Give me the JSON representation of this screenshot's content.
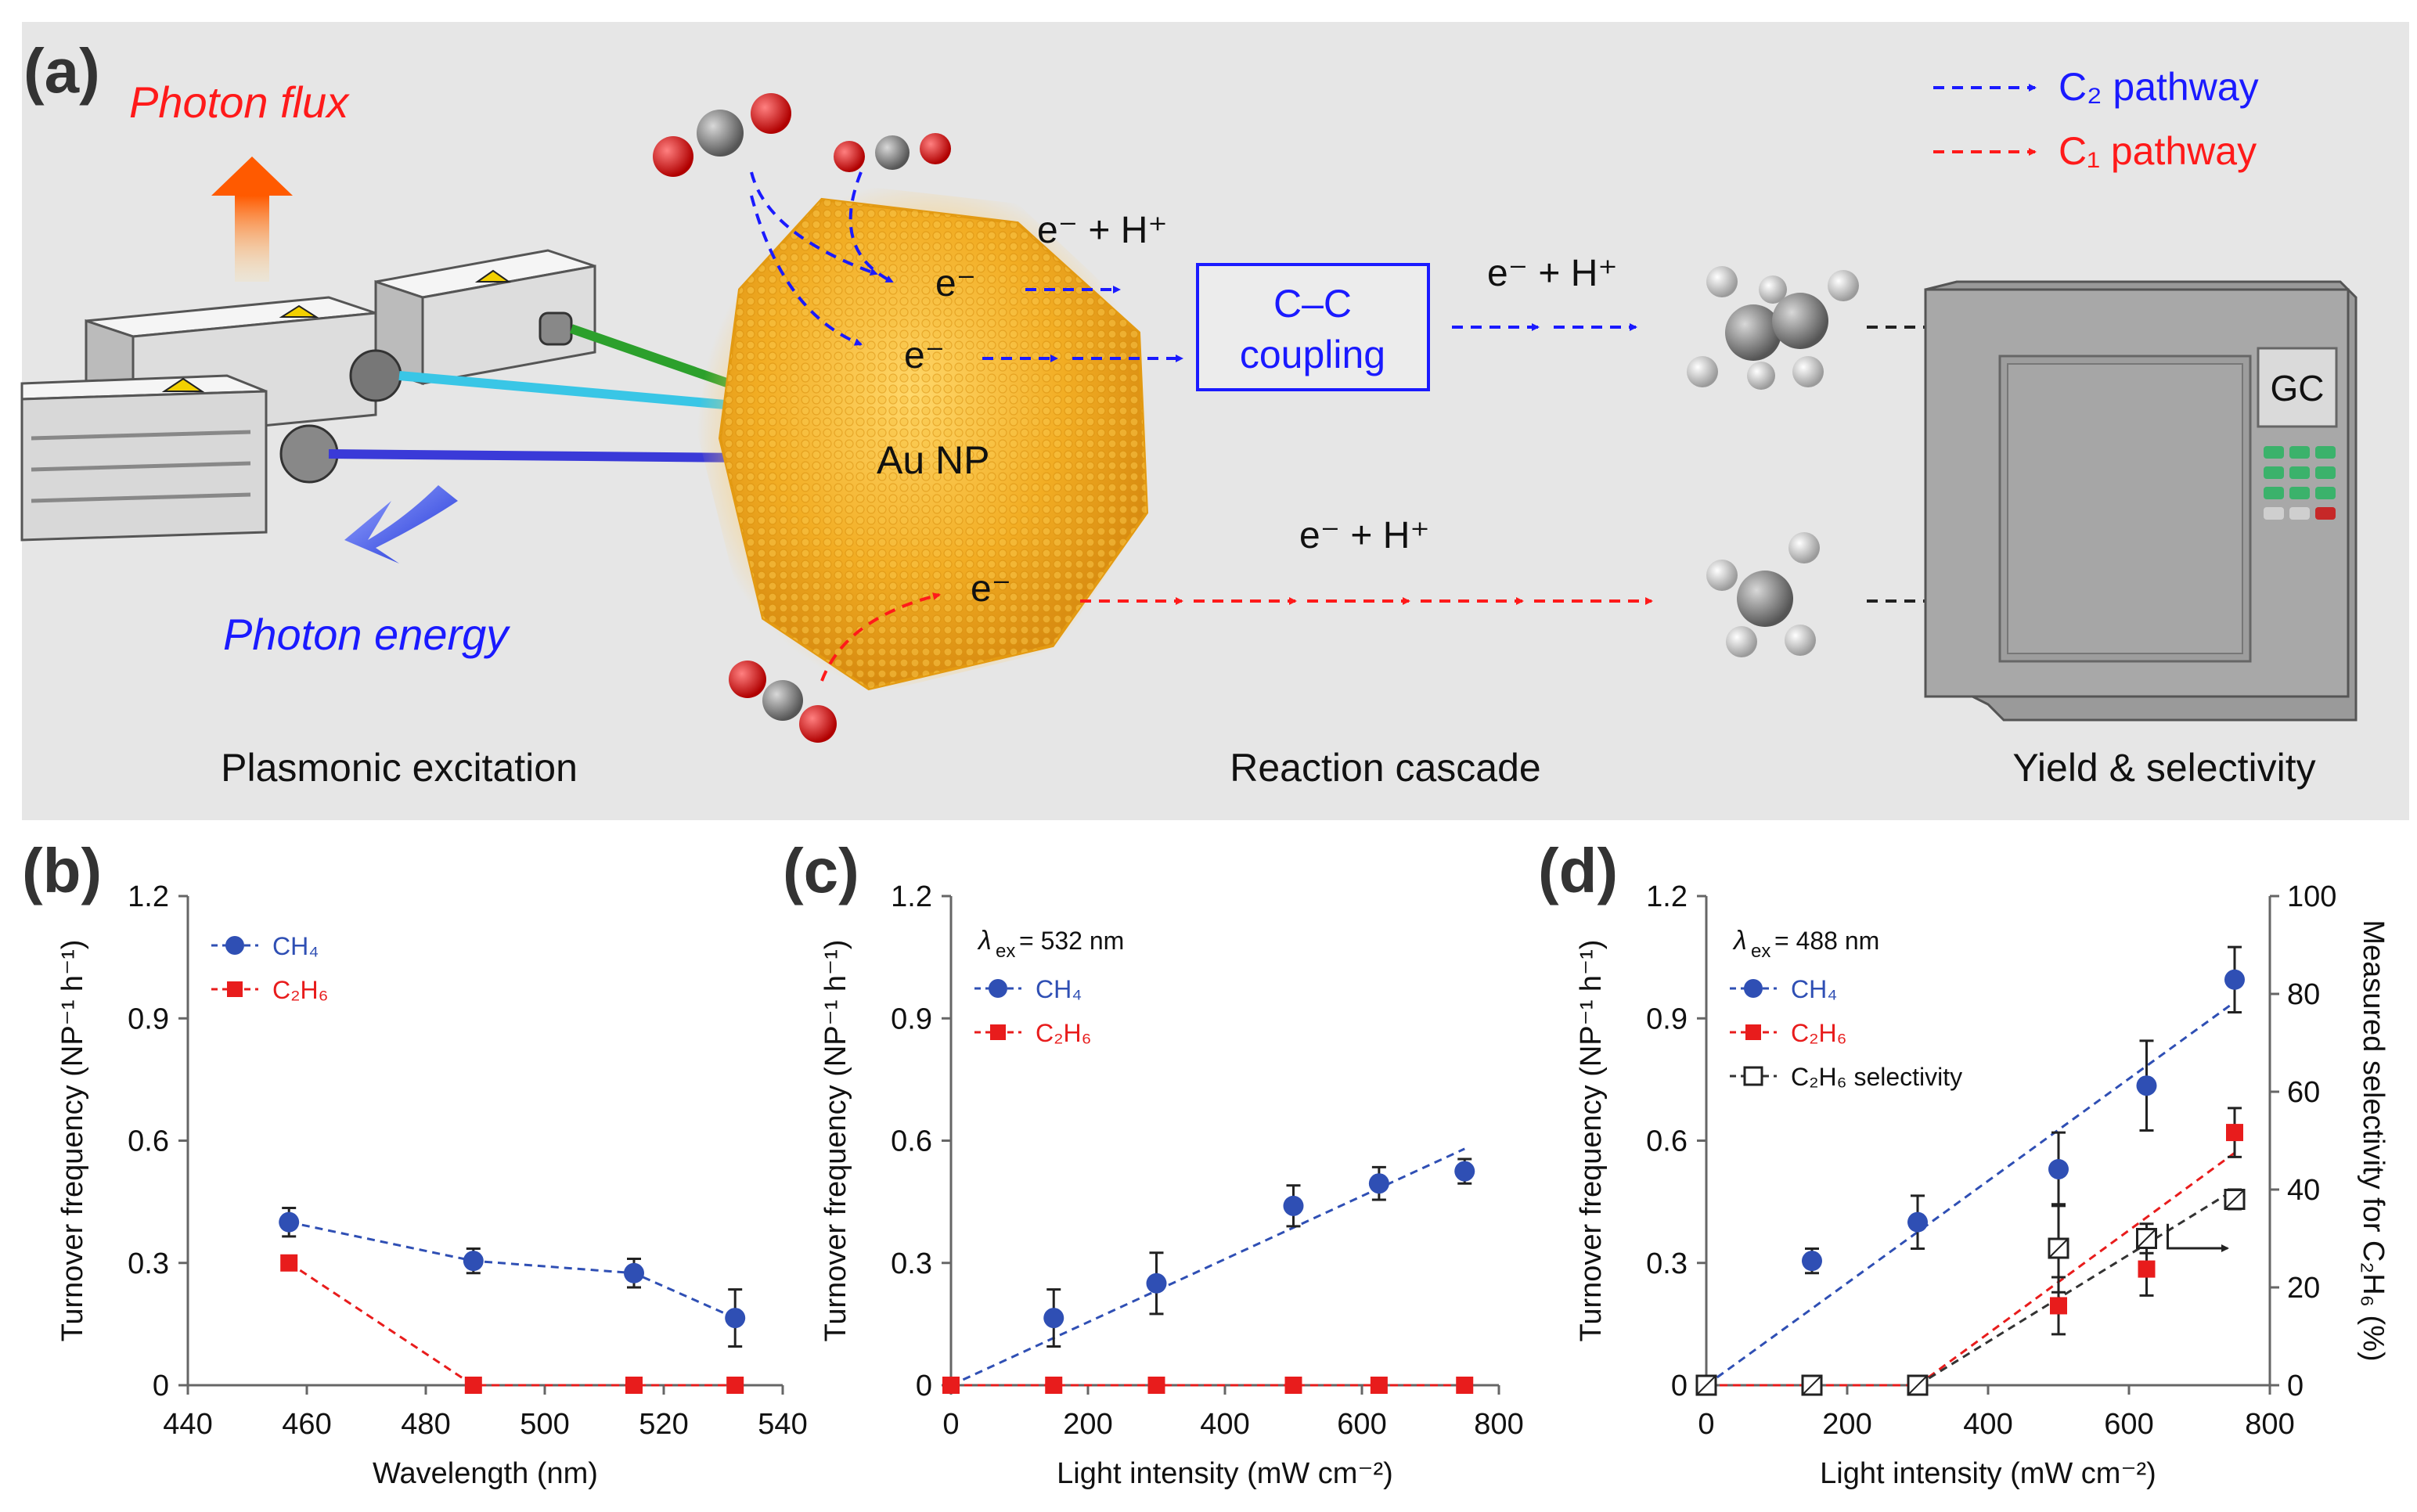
{
  "colors": {
    "panel_bg": "#e6e6e6",
    "ch4": "#2f4fb4",
    "c2h6": "#e81c1c",
    "sel": "#333333",
    "blue_text": "#1a1aff",
    "red_text": "#ff1a1a",
    "gold": "#f2ad23"
  },
  "panel_a": {
    "label": "(a)",
    "photon_flux": "Photon flux",
    "photon_energy": "Photon energy",
    "legend": [
      {
        "text": "C₂ pathway",
        "color": "#1a1aff"
      },
      {
        "text": "C₁ pathway",
        "color": "#ff1a1a"
      }
    ],
    "electron": "e⁻",
    "proton_electron": "e⁻ + H⁺",
    "nanoparticle": "Au NP",
    "coupling_line1": "C–C",
    "coupling_line2": "coupling",
    "gc_label": "GC",
    "captions": [
      "Plasmonic excitation",
      "Reaction cascade",
      "Yield & selectivity"
    ],
    "icons": [
      "laser-source-icon",
      "co2-molecule-icon",
      "ethane-molecule-icon",
      "methane-molecule-icon",
      "gas-chromatograph-icon"
    ]
  },
  "chart_data": [
    {
      "panel": "(b)",
      "type": "scatter",
      "xlabel": "Wavelength (nm)",
      "ylabel": "Turnover frequency (NP⁻¹ h⁻¹)",
      "xlim": [
        440,
        540
      ],
      "ylim": [
        0,
        1.2
      ],
      "xticks": [
        "440",
        "460",
        "480",
        "500",
        "520",
        "540"
      ],
      "yticks": [
        "0",
        "0.3",
        "0.6",
        "0.9",
        "1.2"
      ],
      "annotation": "",
      "series": [
        {
          "name": "CH₄",
          "x": [
            457,
            488,
            515,
            532
          ],
          "y": [
            0.4,
            0.305,
            0.275,
            0.165
          ],
          "err": [
            0.035,
            0.03,
            0.035,
            0.07
          ]
        },
        {
          "name": "C₂H₆",
          "x": [
            457,
            488,
            515,
            532
          ],
          "y": [
            0.3,
            0,
            0,
            0
          ]
        }
      ],
      "legend_position": "top-left"
    },
    {
      "panel": "(c)",
      "type": "scatter",
      "xlabel": "Light intensity (mW cm⁻²)",
      "ylabel": "Turnover frequency (NP⁻¹ h⁻¹)",
      "xlim": [
        0,
        800
      ],
      "ylim": [
        0,
        1.2
      ],
      "xticks": [
        "0",
        "200",
        "400",
        "600",
        "800"
      ],
      "yticks": [
        "0",
        "0.3",
        "0.6",
        "0.9",
        "1.2"
      ],
      "annotation": "λ",
      "annotation_sub": "ex",
      "annotation_rest": " = 532 nm",
      "series": [
        {
          "name": "CH₄",
          "x": [
            150,
            300,
            500,
            625,
            750
          ],
          "y": [
            0.165,
            0.25,
            0.44,
            0.495,
            0.525
          ],
          "err": [
            0.07,
            0.075,
            0.05,
            0.04,
            0.03
          ]
        },
        {
          "name": "C₂H₆",
          "x": [
            0,
            150,
            300,
            500,
            625,
            750
          ],
          "y": [
            0,
            0,
            0,
            0,
            0,
            0
          ]
        }
      ],
      "fit_line": {
        "x": [
          0,
          750
        ],
        "y": [
          0,
          0.58
        ]
      },
      "legend_position": "top-left"
    },
    {
      "panel": "(d)",
      "type": "scatter",
      "xlabel": "Light intensity (mW cm⁻²)",
      "ylabel": "Turnover frequency (NP⁻¹ h⁻¹)",
      "ylabel_right": "Measured selectivity for C₂H₆ (%)",
      "xlim": [
        0,
        800
      ],
      "ylim": [
        0,
        1.2
      ],
      "ylim_right": [
        0,
        100
      ],
      "xticks": [
        "0",
        "200",
        "400",
        "600",
        "800"
      ],
      "yticks": [
        "0",
        "0.3",
        "0.6",
        "0.9",
        "1.2"
      ],
      "yticks_right": [
        "0",
        "20",
        "40",
        "60",
        "80",
        "100"
      ],
      "annotation": "λ",
      "annotation_sub": "ex",
      "annotation_rest": " = 488 nm",
      "series": [
        {
          "name": "CH₄",
          "x": [
            150,
            300,
            500,
            625,
            750
          ],
          "y": [
            0.305,
            0.4,
            0.53,
            0.735,
            0.995
          ],
          "err": [
            0.03,
            0.065,
            0.09,
            0.11,
            0.08
          ]
        },
        {
          "name": "C₂H₆",
          "x": [
            150,
            300,
            500,
            625,
            750
          ],
          "y": [
            0,
            0,
            0.195,
            0.285,
            0.62
          ],
          "err": [
            0,
            0,
            0.07,
            0.065,
            0.06
          ]
        },
        {
          "name": "C₂H₆ selectivity",
          "x": [
            0,
            150,
            300,
            500,
            625,
            750
          ],
          "y": [
            0,
            0,
            0,
            28,
            30,
            38
          ],
          "err": [
            0,
            0,
            0,
            9,
            3,
            2
          ],
          "axis": "right"
        }
      ],
      "fit_lines": [
        {
          "series": "CH₄",
          "x": [
            0,
            750
          ],
          "y": [
            0,
            0.94
          ]
        },
        {
          "series": "C₂H₆",
          "x": [
            300,
            750
          ],
          "y": [
            0,
            0.57
          ]
        },
        {
          "series": "C₂H₆ selectivity",
          "x": [
            300,
            750
          ],
          "y": [
            0,
            40
          ]
        }
      ],
      "legend_position": "top-left"
    }
  ]
}
